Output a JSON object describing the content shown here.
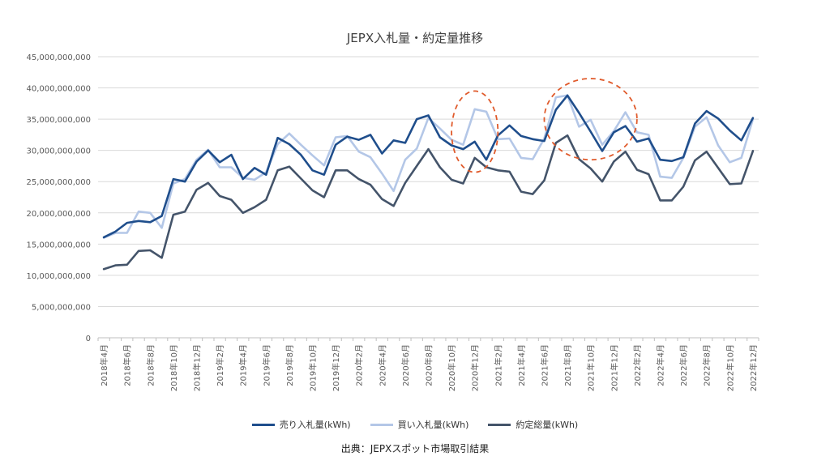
{
  "chart_data": {
    "type": "line",
    "title": "JEPX入札量・約定量推移",
    "source": "出典：JEPXスポット市場取引結果",
    "ylim": [
      0,
      45000000000
    ],
    "y_ticks": [
      "0",
      "5,000,000,000",
      "10,000,000,000",
      "15,000,000,000",
      "20,000,000,000",
      "25,000,000,000",
      "30,000,000,000",
      "35,000,000,000",
      "40,000,000,000",
      "45,000,000,000"
    ],
    "x": [
      "2018年4月",
      "2018年5月",
      "2018年6月",
      "2018年7月",
      "2018年8月",
      "2018年9月",
      "2018年10月",
      "2018年11月",
      "2018年12月",
      "2019年1月",
      "2019年2月",
      "2019年3月",
      "2019年4月",
      "2019年5月",
      "2019年6月",
      "2019年7月",
      "2019年8月",
      "2019年9月",
      "2019年10月",
      "2019年11月",
      "2019年12月",
      "2020年1月",
      "2020年2月",
      "2020年3月",
      "2020年4月",
      "2020年5月",
      "2020年6月",
      "2020年7月",
      "2020年8月",
      "2020年9月",
      "2020年10月",
      "2020年11月",
      "2020年12月",
      "2021年1月",
      "2021年2月",
      "2021年3月",
      "2021年4月",
      "2021年5月",
      "2021年6月",
      "2021年7月",
      "2021年8月",
      "2021年9月",
      "2021年10月",
      "2021年11月",
      "2021年12月",
      "2022年1月",
      "2022年2月",
      "2022年3月",
      "2022年4月",
      "2022年5月",
      "2022年6月",
      "2022年7月",
      "2022年8月",
      "2022年9月",
      "2022年10月",
      "2022年11月",
      "2022年12月"
    ],
    "x_tick_labels": [
      "2018年4月",
      "2018年6月",
      "2018年8月",
      "2018年10月",
      "2018年12月",
      "2019年2月",
      "2019年4月",
      "2019年6月",
      "2019年8月",
      "2019年10月",
      "2019年12月",
      "2020年2月",
      "2020年4月",
      "2020年6月",
      "2020年8月",
      "2020年10月",
      "2020年12月",
      "2021年2月",
      "2021年4月",
      "2021年6月",
      "2021年8月",
      "2021年10月",
      "2021年12月",
      "2022年2月",
      "2022年4月",
      "2022年6月",
      "2022年8月",
      "2022年10月",
      "2022年12月"
    ],
    "series": [
      {
        "name": "売り入札量(kWh)",
        "color": "#1F4E8C",
        "values": [
          16100000000,
          17000000000,
          18400000000,
          18700000000,
          18500000000,
          19500000000,
          25400000000,
          25000000000,
          28200000000,
          30000000000,
          28100000000,
          29300000000,
          25400000000,
          27200000000,
          26100000000,
          32000000000,
          31000000000,
          29300000000,
          26800000000,
          26100000000,
          30900000000,
          32200000000,
          31700000000,
          32500000000,
          29500000000,
          31600000000,
          31200000000,
          35000000000,
          35600000000,
          32100000000,
          30800000000,
          30200000000,
          31400000000,
          28500000000,
          32400000000,
          34000000000,
          32300000000,
          31800000000,
          31500000000,
          36500000000,
          38800000000,
          36000000000,
          33000000000,
          29900000000,
          32900000000,
          33900000000,
          31400000000,
          31900000000,
          28500000000,
          28300000000,
          28900000000,
          34300000000,
          36300000000,
          35100000000,
          33200000000,
          31600000000,
          35200000000
        ]
      },
      {
        "name": "買い入札量(kWh)",
        "color": "#B4C7E7",
        "values": [
          16000000000,
          16800000000,
          16800000000,
          20200000000,
          20000000000,
          17600000000,
          24700000000,
          25400000000,
          28500000000,
          30100000000,
          27300000000,
          27300000000,
          25600000000,
          25300000000,
          26500000000,
          31000000000,
          32700000000,
          30900000000,
          29200000000,
          27600000000,
          32100000000,
          32300000000,
          29800000000,
          28900000000,
          26300000000,
          23500000000,
          28500000000,
          30300000000,
          35200000000,
          33500000000,
          31700000000,
          30900000000,
          36600000000,
          36200000000,
          31800000000,
          31900000000,
          28800000000,
          28600000000,
          31900000000,
          38500000000,
          38800000000,
          33800000000,
          34900000000,
          30900000000,
          33100000000,
          36100000000,
          32900000000,
          32500000000,
          25800000000,
          25600000000,
          28800000000,
          33800000000,
          35300000000,
          30800000000,
          28100000000,
          28800000000,
          35000000000
        ]
      },
      {
        "name": "約定総量(kWh)",
        "color": "#44546A",
        "values": [
          11000000000,
          11600000000,
          11700000000,
          13900000000,
          14000000000,
          12800000000,
          19700000000,
          20200000000,
          23700000000,
          24800000000,
          22700000000,
          22100000000,
          20000000000,
          20900000000,
          22100000000,
          26800000000,
          27400000000,
          25500000000,
          23600000000,
          22500000000,
          26800000000,
          26800000000,
          25400000000,
          24500000000,
          22200000000,
          21100000000,
          24800000000,
          27500000000,
          30200000000,
          27300000000,
          25300000000,
          24700000000,
          28800000000,
          27300000000,
          26800000000,
          26600000000,
          23400000000,
          23000000000,
          25200000000,
          31200000000,
          32400000000,
          28600000000,
          27100000000,
          25000000000,
          28200000000,
          29800000000,
          26900000000,
          26200000000,
          22000000000,
          22000000000,
          24200000000,
          28400000000,
          29800000000,
          27200000000,
          24600000000,
          24700000000,
          29900000000
        ]
      }
    ],
    "annotations": [
      {
        "type": "dashed-ellipse",
        "color": "#E05A2B",
        "x_from": "2020年10月",
        "x_to": "2021年2月",
        "y_from": 26500000000,
        "y_to": 39500000000
      },
      {
        "type": "dashed-ellipse",
        "color": "#E05A2B",
        "x_from": "2021年6月",
        "x_to": "2022年2月",
        "y_from": 28500000000,
        "y_to": 41500000000
      }
    ],
    "legend_position": "bottom",
    "grid": true
  }
}
